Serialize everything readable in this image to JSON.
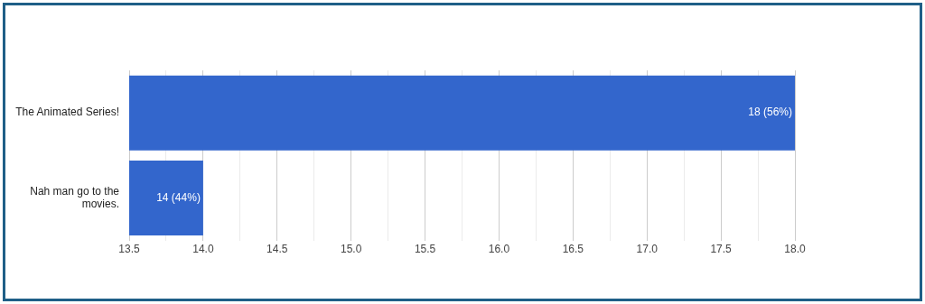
{
  "chart_data": {
    "type": "bar",
    "orientation": "horizontal",
    "categories": [
      "The Animated Series!",
      "Nah man go to the movies."
    ],
    "values": [
      18,
      14
    ],
    "color": "#3366cc",
    "value_labels": [
      "18 (56%)",
      "14 (44%)"
    ],
    "xlim": [
      13.5,
      18
    ],
    "xticks": [
      13.5,
      {
        "value": 13.75,
        "label": null
      },
      {
        "value": 14,
        "label": "14.0"
      },
      {
        "value": 14.25,
        "label": null
      },
      14.5,
      {
        "value": 14.75,
        "label": null
      },
      {
        "value": 15,
        "label": "15.0"
      },
      {
        "value": 15.25,
        "label": null
      },
      15.5,
      {
        "value": 15.75,
        "label": null
      },
      {
        "value": 16,
        "label": "16.0"
      },
      {
        "value": 16.25,
        "label": null
      },
      16.5,
      {
        "value": 16.75,
        "label": null
      },
      {
        "value": 17,
        "label": "17.0"
      },
      {
        "value": 17.25,
        "label": null
      },
      17.5,
      {
        "value": 17.75,
        "label": null
      },
      {
        "value": 18,
        "label": "18.0"
      }
    ],
    "grid": "x"
  }
}
